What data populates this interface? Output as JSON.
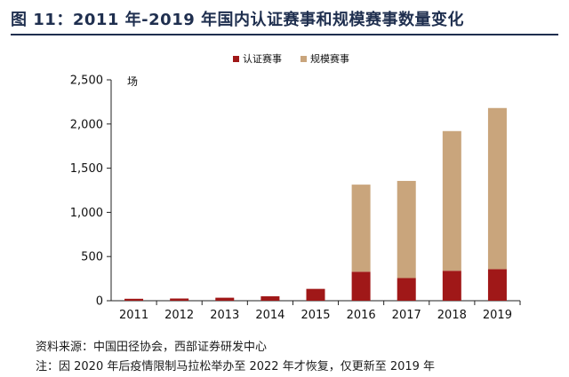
{
  "title": "图 11：2011 年-2019 年国内认证赛事和规模赛事数量变化",
  "source": "资料来源：中国田径协会，西部证券研发中心",
  "note": "注：因 2020 年后疫情限制马拉松举办至 2022 年才恢复，仅更新至 2019 年",
  "colors": {
    "certified": "#a01818",
    "scale": "#c9a57c",
    "title": "#1f2f4f"
  },
  "chart_data": {
    "type": "bar",
    "stacked": true,
    "categories": [
      "2011",
      "2012",
      "2013",
      "2014",
      "2015",
      "2016",
      "2017",
      "2018",
      "2019"
    ],
    "series": [
      {
        "name": "认证赛事",
        "values": [
          22,
          25,
          34,
          50,
          134,
          328,
          256,
          339,
          357
        ]
      },
      {
        "name": "规模赛事",
        "values": [
          0,
          0,
          0,
          0,
          0,
          986,
          1100,
          1581,
          1824
        ]
      }
    ],
    "ylabel": "场",
    "ylim": [
      0,
      2500
    ],
    "yticks": [
      0,
      500,
      1000,
      1500,
      2000,
      2500
    ],
    "ytick_labels": [
      "0",
      "500",
      "1,000",
      "1,500",
      "2,000",
      "2,500"
    ],
    "legend_position": "top-center",
    "grid": false
  }
}
